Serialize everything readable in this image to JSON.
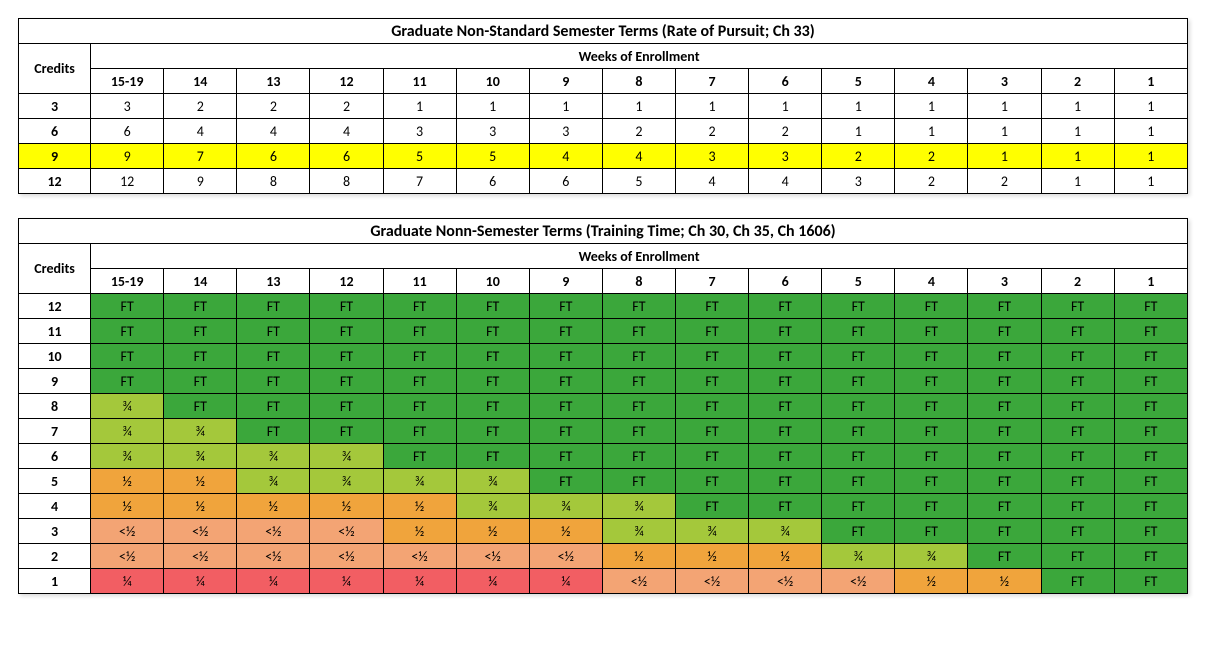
{
  "table1": {
    "title": "Graduate Non-Standard Semester Terms (Rate of Pursuit; Ch 33)",
    "weeks_label": "Weeks of Enrollment",
    "credits_label": "Credits",
    "columns": [
      "15-19",
      "14",
      "13",
      "12",
      "11",
      "10",
      "9",
      "8",
      "7",
      "6",
      "5",
      "4",
      "3",
      "2",
      "1"
    ],
    "rows": [
      {
        "label": "3",
        "cells": [
          "3",
          "2",
          "2",
          "2",
          "1",
          "1",
          "1",
          "1",
          "1",
          "1",
          "1",
          "1",
          "1",
          "1",
          "1"
        ],
        "highlight": false
      },
      {
        "label": "6",
        "cells": [
          "6",
          "4",
          "4",
          "4",
          "3",
          "3",
          "3",
          "2",
          "2",
          "2",
          "1",
          "1",
          "1",
          "1",
          "1"
        ],
        "highlight": false
      },
      {
        "label": "9",
        "cells": [
          "9",
          "7",
          "6",
          "6",
          "5",
          "5",
          "4",
          "4",
          "3",
          "3",
          "2",
          "2",
          "1",
          "1",
          "1"
        ],
        "highlight": true
      },
      {
        "label": "12",
        "cells": [
          "12",
          "9",
          "8",
          "8",
          "7",
          "6",
          "6",
          "5",
          "4",
          "4",
          "3",
          "2",
          "2",
          "1",
          "1"
        ],
        "highlight": false
      }
    ],
    "highlight_color": "#ffff00"
  },
  "table2": {
    "title": "Graduate Nonn-Semester Terms (Training Time; Ch 30, Ch 35, Ch 1606)",
    "weeks_label": "Weeks of Enrollment",
    "credits_label": "Credits",
    "columns": [
      "15-19",
      "14",
      "13",
      "12",
      "11",
      "10",
      "9",
      "8",
      "7",
      "6",
      "5",
      "4",
      "3",
      "2",
      "1"
    ],
    "rows": [
      {
        "label": "12",
        "cells": [
          {
            "v": "FT",
            "c": "FT"
          },
          {
            "v": "FT",
            "c": "FT"
          },
          {
            "v": "FT",
            "c": "FT"
          },
          {
            "v": "FT",
            "c": "FT"
          },
          {
            "v": "FT",
            "c": "FT"
          },
          {
            "v": "FT",
            "c": "FT"
          },
          {
            "v": "FT",
            "c": "FT"
          },
          {
            "v": "FT",
            "c": "FT"
          },
          {
            "v": "FT",
            "c": "FT"
          },
          {
            "v": "FT",
            "c": "FT"
          },
          {
            "v": "FT",
            "c": "FT"
          },
          {
            "v": "FT",
            "c": "FT"
          },
          {
            "v": "FT",
            "c": "FT"
          },
          {
            "v": "FT",
            "c": "FT"
          },
          {
            "v": "FT",
            "c": "FT"
          }
        ]
      },
      {
        "label": "11",
        "cells": [
          {
            "v": "FT",
            "c": "FT"
          },
          {
            "v": "FT",
            "c": "FT"
          },
          {
            "v": "FT",
            "c": "FT"
          },
          {
            "v": "FT",
            "c": "FT"
          },
          {
            "v": "FT",
            "c": "FT"
          },
          {
            "v": "FT",
            "c": "FT"
          },
          {
            "v": "FT",
            "c": "FT"
          },
          {
            "v": "FT",
            "c": "FT"
          },
          {
            "v": "FT",
            "c": "FT"
          },
          {
            "v": "FT",
            "c": "FT"
          },
          {
            "v": "FT",
            "c": "FT"
          },
          {
            "v": "FT",
            "c": "FT"
          },
          {
            "v": "FT",
            "c": "FT"
          },
          {
            "v": "FT",
            "c": "FT"
          },
          {
            "v": "FT",
            "c": "FT"
          }
        ]
      },
      {
        "label": "10",
        "cells": [
          {
            "v": "FT",
            "c": "FT"
          },
          {
            "v": "FT",
            "c": "FT"
          },
          {
            "v": "FT",
            "c": "FT"
          },
          {
            "v": "FT",
            "c": "FT"
          },
          {
            "v": "FT",
            "c": "FT"
          },
          {
            "v": "FT",
            "c": "FT"
          },
          {
            "v": "FT",
            "c": "FT"
          },
          {
            "v": "FT",
            "c": "FT"
          },
          {
            "v": "FT",
            "c": "FT"
          },
          {
            "v": "FT",
            "c": "FT"
          },
          {
            "v": "FT",
            "c": "FT"
          },
          {
            "v": "FT",
            "c": "FT"
          },
          {
            "v": "FT",
            "c": "FT"
          },
          {
            "v": "FT",
            "c": "FT"
          },
          {
            "v": "FT",
            "c": "FT"
          }
        ]
      },
      {
        "label": "9",
        "cells": [
          {
            "v": "FT",
            "c": "FT"
          },
          {
            "v": "FT",
            "c": "FT"
          },
          {
            "v": "FT",
            "c": "FT"
          },
          {
            "v": "FT",
            "c": "FT"
          },
          {
            "v": "FT",
            "c": "FT"
          },
          {
            "v": "FT",
            "c": "FT"
          },
          {
            "v": "FT",
            "c": "FT"
          },
          {
            "v": "FT",
            "c": "FT"
          },
          {
            "v": "FT",
            "c": "FT"
          },
          {
            "v": "FT",
            "c": "FT"
          },
          {
            "v": "FT",
            "c": "FT"
          },
          {
            "v": "FT",
            "c": "FT"
          },
          {
            "v": "FT",
            "c": "FT"
          },
          {
            "v": "FT",
            "c": "FT"
          },
          {
            "v": "FT",
            "c": "FT"
          }
        ]
      },
      {
        "label": "8",
        "cells": [
          {
            "v": "¾",
            "c": "TQ"
          },
          {
            "v": "FT",
            "c": "FT"
          },
          {
            "v": "FT",
            "c": "FT"
          },
          {
            "v": "FT",
            "c": "FT"
          },
          {
            "v": "FT",
            "c": "FT"
          },
          {
            "v": "FT",
            "c": "FT"
          },
          {
            "v": "FT",
            "c": "FT"
          },
          {
            "v": "FT",
            "c": "FT"
          },
          {
            "v": "FT",
            "c": "FT"
          },
          {
            "v": "FT",
            "c": "FT"
          },
          {
            "v": "FT",
            "c": "FT"
          },
          {
            "v": "FT",
            "c": "FT"
          },
          {
            "v": "FT",
            "c": "FT"
          },
          {
            "v": "FT",
            "c": "FT"
          },
          {
            "v": "FT",
            "c": "FT"
          }
        ]
      },
      {
        "label": "7",
        "cells": [
          {
            "v": "¾",
            "c": "TQ"
          },
          {
            "v": "¾",
            "c": "TQ"
          },
          {
            "v": "FT",
            "c": "FT"
          },
          {
            "v": "FT",
            "c": "FT"
          },
          {
            "v": "FT",
            "c": "FT"
          },
          {
            "v": "FT",
            "c": "FT"
          },
          {
            "v": "FT",
            "c": "FT"
          },
          {
            "v": "FT",
            "c": "FT"
          },
          {
            "v": "FT",
            "c": "FT"
          },
          {
            "v": "FT",
            "c": "FT"
          },
          {
            "v": "FT",
            "c": "FT"
          },
          {
            "v": "FT",
            "c": "FT"
          },
          {
            "v": "FT",
            "c": "FT"
          },
          {
            "v": "FT",
            "c": "FT"
          },
          {
            "v": "FT",
            "c": "FT"
          }
        ]
      },
      {
        "label": "6",
        "cells": [
          {
            "v": "¾",
            "c": "TQ"
          },
          {
            "v": "¾",
            "c": "TQ"
          },
          {
            "v": "¾",
            "c": "TQ"
          },
          {
            "v": "¾",
            "c": "TQ"
          },
          {
            "v": "FT",
            "c": "FT"
          },
          {
            "v": "FT",
            "c": "FT"
          },
          {
            "v": "FT",
            "c": "FT"
          },
          {
            "v": "FT",
            "c": "FT"
          },
          {
            "v": "FT",
            "c": "FT"
          },
          {
            "v": "FT",
            "c": "FT"
          },
          {
            "v": "FT",
            "c": "FT"
          },
          {
            "v": "FT",
            "c": "FT"
          },
          {
            "v": "FT",
            "c": "FT"
          },
          {
            "v": "FT",
            "c": "FT"
          },
          {
            "v": "FT",
            "c": "FT"
          }
        ]
      },
      {
        "label": "5",
        "cells": [
          {
            "v": "½",
            "c": "HF"
          },
          {
            "v": "½",
            "c": "HF"
          },
          {
            "v": "¾",
            "c": "TQ"
          },
          {
            "v": "¾",
            "c": "TQ"
          },
          {
            "v": "¾",
            "c": "TQ"
          },
          {
            "v": "¾",
            "c": "TQ"
          },
          {
            "v": "FT",
            "c": "FT"
          },
          {
            "v": "FT",
            "c": "FT"
          },
          {
            "v": "FT",
            "c": "FT"
          },
          {
            "v": "FT",
            "c": "FT"
          },
          {
            "v": "FT",
            "c": "FT"
          },
          {
            "v": "FT",
            "c": "FT"
          },
          {
            "v": "FT",
            "c": "FT"
          },
          {
            "v": "FT",
            "c": "FT"
          },
          {
            "v": "FT",
            "c": "FT"
          }
        ]
      },
      {
        "label": "4",
        "cells": [
          {
            "v": "½",
            "c": "HF"
          },
          {
            "v": "½",
            "c": "HF"
          },
          {
            "v": "½",
            "c": "HF"
          },
          {
            "v": "½",
            "c": "HF"
          },
          {
            "v": "½",
            "c": "HF"
          },
          {
            "v": "¾",
            "c": "TQ"
          },
          {
            "v": "¾",
            "c": "TQ"
          },
          {
            "v": "¾",
            "c": "TQ"
          },
          {
            "v": "FT",
            "c": "FT"
          },
          {
            "v": "FT",
            "c": "FT"
          },
          {
            "v": "FT",
            "c": "FT"
          },
          {
            "v": "FT",
            "c": "FT"
          },
          {
            "v": "FT",
            "c": "FT"
          },
          {
            "v": "FT",
            "c": "FT"
          },
          {
            "v": "FT",
            "c": "FT"
          }
        ]
      },
      {
        "label": "3",
        "cells": [
          {
            "v": "<½",
            "c": "LH"
          },
          {
            "v": "<½",
            "c": "LH"
          },
          {
            "v": "<½",
            "c": "LH"
          },
          {
            "v": "<½",
            "c": "LH"
          },
          {
            "v": "½",
            "c": "HF"
          },
          {
            "v": "½",
            "c": "HF"
          },
          {
            "v": "½",
            "c": "HF"
          },
          {
            "v": "¾",
            "c": "TQ"
          },
          {
            "v": "¾",
            "c": "TQ"
          },
          {
            "v": "¾",
            "c": "TQ"
          },
          {
            "v": "FT",
            "c": "FT"
          },
          {
            "v": "FT",
            "c": "FT"
          },
          {
            "v": "FT",
            "c": "FT"
          },
          {
            "v": "FT",
            "c": "FT"
          },
          {
            "v": "FT",
            "c": "FT"
          }
        ]
      },
      {
        "label": "2",
        "cells": [
          {
            "v": "<½",
            "c": "LH"
          },
          {
            "v": "<½",
            "c": "LH"
          },
          {
            "v": "<½",
            "c": "LH"
          },
          {
            "v": "<½",
            "c": "LH"
          },
          {
            "v": "<½",
            "c": "LH"
          },
          {
            "v": "<½",
            "c": "LH"
          },
          {
            "v": "<½",
            "c": "LH"
          },
          {
            "v": "½",
            "c": "HF"
          },
          {
            "v": "½",
            "c": "HF"
          },
          {
            "v": "½",
            "c": "HF"
          },
          {
            "v": "¾",
            "c": "TQ"
          },
          {
            "v": "¾",
            "c": "TQ"
          },
          {
            "v": "FT",
            "c": "FT"
          },
          {
            "v": "FT",
            "c": "FT"
          },
          {
            "v": "FT",
            "c": "FT"
          }
        ]
      },
      {
        "label": "1",
        "cells": [
          {
            "v": "¼",
            "c": "QT"
          },
          {
            "v": "¼",
            "c": "QT"
          },
          {
            "v": "¼",
            "c": "QT"
          },
          {
            "v": "¼",
            "c": "QT"
          },
          {
            "v": "¼",
            "c": "QT"
          },
          {
            "v": "¼",
            "c": "QT"
          },
          {
            "v": "¼",
            "c": "QT"
          },
          {
            "v": "<½",
            "c": "LH"
          },
          {
            "v": "<½",
            "c": "LH"
          },
          {
            "v": "<½",
            "c": "LH"
          },
          {
            "v": "<½",
            "c": "LH"
          },
          {
            "v": "½",
            "c": "HF"
          },
          {
            "v": "½",
            "c": "HF"
          },
          {
            "v": "FT",
            "c": "FT"
          },
          {
            "v": "FT",
            "c": "FT"
          }
        ]
      }
    ],
    "palette": {
      "FT": "#3ba73b",
      "TQ": "#a4c83b",
      "HF": "#f0a43c",
      "LH": "#f3a474",
      "QT": "#f25e63"
    }
  }
}
